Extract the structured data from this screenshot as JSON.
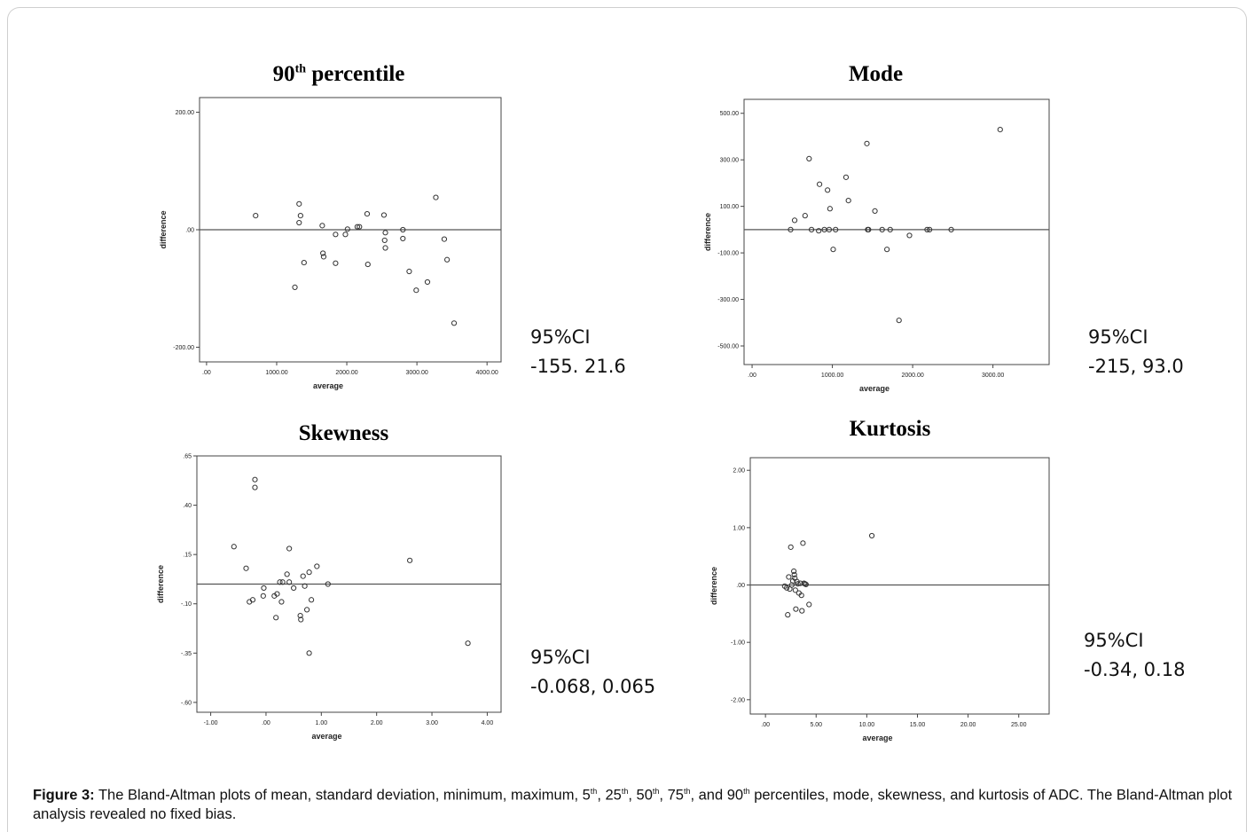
{
  "chart_data": [
    {
      "id": "p90",
      "type": "scatter",
      "title": "90",
      "title_sup": "th",
      "title_rest": " percentile",
      "xlabel": "average",
      "ylabel": "difference",
      "xlim": [
        -100,
        4200
      ],
      "ylim": [
        -225,
        225
      ],
      "xticks": [
        0,
        1000,
        2000,
        3000,
        4000
      ],
      "xtick_labels": [
        ".00",
        "1000.00",
        "2000.00",
        "3000.00",
        "4000.00"
      ],
      "yticks": [
        200,
        0,
        -200
      ],
      "ytick_labels": [
        "200.00",
        ".00",
        "-200.00"
      ],
      "reference_line": 0,
      "points": [
        {
          "x": 700,
          "y": 24
        },
        {
          "x": 1320,
          "y": 44
        },
        {
          "x": 1340,
          "y": 24
        },
        {
          "x": 1320,
          "y": 12
        },
        {
          "x": 1390,
          "y": -56
        },
        {
          "x": 1260,
          "y": -98
        },
        {
          "x": 1650,
          "y": 7
        },
        {
          "x": 1660,
          "y": -40
        },
        {
          "x": 1670,
          "y": -46
        },
        {
          "x": 1840,
          "y": -8
        },
        {
          "x": 1840,
          "y": -57
        },
        {
          "x": 1980,
          "y": -8
        },
        {
          "x": 2010,
          "y": 1
        },
        {
          "x": 2150,
          "y": 5
        },
        {
          "x": 2180,
          "y": 5
        },
        {
          "x": 2290,
          "y": 27
        },
        {
          "x": 2300,
          "y": -59
        },
        {
          "x": 2530,
          "y": 25
        },
        {
          "x": 2540,
          "y": -18
        },
        {
          "x": 2550,
          "y": -5
        },
        {
          "x": 2550,
          "y": -31
        },
        {
          "x": 2800,
          "y": 0
        },
        {
          "x": 2800,
          "y": -15
        },
        {
          "x": 2890,
          "y": -71
        },
        {
          "x": 2990,
          "y": -103
        },
        {
          "x": 3150,
          "y": -89
        },
        {
          "x": 3270,
          "y": 55
        },
        {
          "x": 3390,
          "y": -16
        },
        {
          "x": 3430,
          "y": -51
        },
        {
          "x": 3530,
          "y": -159
        }
      ]
    },
    {
      "id": "mode",
      "type": "scatter",
      "title": "Mode",
      "xlabel": "average",
      "ylabel": "difference",
      "xlim": [
        -100,
        3700
      ],
      "ylim": [
        -580,
        560
      ],
      "xticks": [
        0,
        1000,
        2000,
        3000
      ],
      "xtick_labels": [
        ".00",
        "1000.00",
        "2000.00",
        "3000.00"
      ],
      "yticks": [
        500,
        300,
        100,
        -100,
        -300,
        -500
      ],
      "ytick_labels": [
        "500.00",
        "300.00",
        "100.00",
        "-100.00",
        "-300.00",
        "-500.00"
      ],
      "reference_line": 0,
      "points": [
        {
          "x": 480,
          "y": 0
        },
        {
          "x": 530,
          "y": 40
        },
        {
          "x": 660,
          "y": 60
        },
        {
          "x": 710,
          "y": 305
        },
        {
          "x": 740,
          "y": 0
        },
        {
          "x": 830,
          "y": -5
        },
        {
          "x": 840,
          "y": 195
        },
        {
          "x": 900,
          "y": 0
        },
        {
          "x": 940,
          "y": 170
        },
        {
          "x": 960,
          "y": 0
        },
        {
          "x": 970,
          "y": 90
        },
        {
          "x": 1010,
          "y": -85
        },
        {
          "x": 1040,
          "y": 0
        },
        {
          "x": 1170,
          "y": 225
        },
        {
          "x": 1200,
          "y": 125
        },
        {
          "x": 1440,
          "y": 0
        },
        {
          "x": 1450,
          "y": 0
        },
        {
          "x": 1430,
          "y": 370
        },
        {
          "x": 1530,
          "y": 80
        },
        {
          "x": 1620,
          "y": 0
        },
        {
          "x": 1680,
          "y": -85
        },
        {
          "x": 1720,
          "y": 0
        },
        {
          "x": 1830,
          "y": -390
        },
        {
          "x": 1960,
          "y": -25
        },
        {
          "x": 2180,
          "y": 0
        },
        {
          "x": 2210,
          "y": 0
        },
        {
          "x": 2480,
          "y": 0
        },
        {
          "x": 3090,
          "y": 430
        }
      ]
    },
    {
      "id": "skew",
      "type": "scatter",
      "title": "Skewness",
      "xlabel": "average",
      "ylabel": "difference",
      "xlim": [
        -1.25,
        4.25
      ],
      "ylim": [
        -0.65,
        0.65
      ],
      "xticks": [
        -1,
        0,
        1,
        2,
        3,
        4
      ],
      "xtick_labels": [
        "-1.00",
        ".00",
        "1.00",
        "2.00",
        "3.00",
        "4.00"
      ],
      "yticks": [
        0.65,
        0.4,
        0.15,
        -0.1,
        -0.35,
        -0.6
      ],
      "ytick_labels": [
        ".65",
        ".40",
        ".15",
        "-.10",
        "-.35",
        "-.60"
      ],
      "reference_line": 0,
      "points": [
        {
          "x": -0.58,
          "y": 0.19
        },
        {
          "x": -0.36,
          "y": 0.08
        },
        {
          "x": -0.3,
          "y": -0.09
        },
        {
          "x": -0.24,
          "y": -0.08
        },
        {
          "x": -0.2,
          "y": 0.49
        },
        {
          "x": -0.2,
          "y": 0.53
        },
        {
          "x": -0.05,
          "y": -0.06
        },
        {
          "x": -0.04,
          "y": -0.02
        },
        {
          "x": 0.15,
          "y": -0.06
        },
        {
          "x": 0.18,
          "y": -0.17
        },
        {
          "x": 0.2,
          "y": -0.05
        },
        {
          "x": 0.25,
          "y": 0.01
        },
        {
          "x": 0.3,
          "y": 0.01
        },
        {
          "x": 0.28,
          "y": -0.09
        },
        {
          "x": 0.38,
          "y": 0.05
        },
        {
          "x": 0.42,
          "y": 0.18
        },
        {
          "x": 0.42,
          "y": 0.01
        },
        {
          "x": 0.5,
          "y": -0.02
        },
        {
          "x": 0.62,
          "y": -0.16
        },
        {
          "x": 0.63,
          "y": -0.18
        },
        {
          "x": 0.67,
          "y": 0.04
        },
        {
          "x": 0.7,
          "y": -0.01
        },
        {
          "x": 0.74,
          "y": -0.13
        },
        {
          "x": 0.78,
          "y": 0.06
        },
        {
          "x": 0.78,
          "y": -0.35
        },
        {
          "x": 0.82,
          "y": -0.08
        },
        {
          "x": 0.92,
          "y": 0.09
        },
        {
          "x": 1.12,
          "y": 0.0
        },
        {
          "x": 2.6,
          "y": 0.12
        },
        {
          "x": 3.65,
          "y": -0.3
        }
      ]
    },
    {
      "id": "kurt",
      "type": "scatter",
      "title": "Kurtosis",
      "xlabel": "average",
      "ylabel": "difference",
      "xlim": [
        -1.5,
        28
      ],
      "ylim": [
        -2.25,
        2.22
      ],
      "xticks": [
        0,
        5,
        10,
        15,
        20,
        25
      ],
      "xtick_labels": [
        ".00",
        "5.00",
        "10.00",
        "15.00",
        "20.00",
        "25.00"
      ],
      "yticks": [
        2,
        1,
        0,
        -1,
        -2
      ],
      "ytick_labels": [
        "2.00",
        "1.00",
        ".00",
        "-1.00",
        "-2.00"
      ],
      "reference_line": 0,
      "points": [
        {
          "x": 1.9,
          "y": -0.02
        },
        {
          "x": 2.1,
          "y": -0.05
        },
        {
          "x": 2.2,
          "y": -0.52
        },
        {
          "x": 2.3,
          "y": 0.14
        },
        {
          "x": 2.4,
          "y": -0.07
        },
        {
          "x": 2.5,
          "y": 0.66
        },
        {
          "x": 2.6,
          "y": 0.0
        },
        {
          "x": 2.7,
          "y": 0.07
        },
        {
          "x": 2.8,
          "y": 0.24
        },
        {
          "x": 2.85,
          "y": 0.18
        },
        {
          "x": 2.9,
          "y": 0.12
        },
        {
          "x": 2.95,
          "y": -0.09
        },
        {
          "x": 3.0,
          "y": -0.42
        },
        {
          "x": 3.1,
          "y": 0.06
        },
        {
          "x": 3.2,
          "y": 0.02
        },
        {
          "x": 3.3,
          "y": -0.14
        },
        {
          "x": 3.45,
          "y": 0.03
        },
        {
          "x": 3.55,
          "y": -0.18
        },
        {
          "x": 3.6,
          "y": -0.45
        },
        {
          "x": 3.7,
          "y": 0.73
        },
        {
          "x": 3.8,
          "y": 0.03
        },
        {
          "x": 3.9,
          "y": 0.02
        },
        {
          "x": 4.0,
          "y": 0.01
        },
        {
          "x": 4.3,
          "y": -0.34
        },
        {
          "x": 10.5,
          "y": 0.86
        }
      ]
    }
  ],
  "ci_labels": [
    {
      "label": "95%CI",
      "value": "-155. 21.6"
    },
    {
      "label": "95%CI",
      "value": "-215, 93.0"
    },
    {
      "label": "95%CI",
      "value": "-0.068, 0.065"
    },
    {
      "label": "95%CI",
      "value": "-0.34, 0.18"
    }
  ],
  "caption": {
    "label": "Figure 3:",
    "text_1": " The Bland-Altman plots of mean, standard deviation, minimum, maximum, 5",
    "sup_1": "th",
    "text_2": ", 25",
    "sup_2": "th",
    "text_3": ", 50",
    "sup_3": "th",
    "text_4": ", 75",
    "sup_4": "th",
    "text_5": ", and 90",
    "sup_5": "th",
    "text_6": " percentiles, mode, skewness, and kurtosis of ADC. The Bland-Altman plot analysis revealed no fixed bias."
  }
}
